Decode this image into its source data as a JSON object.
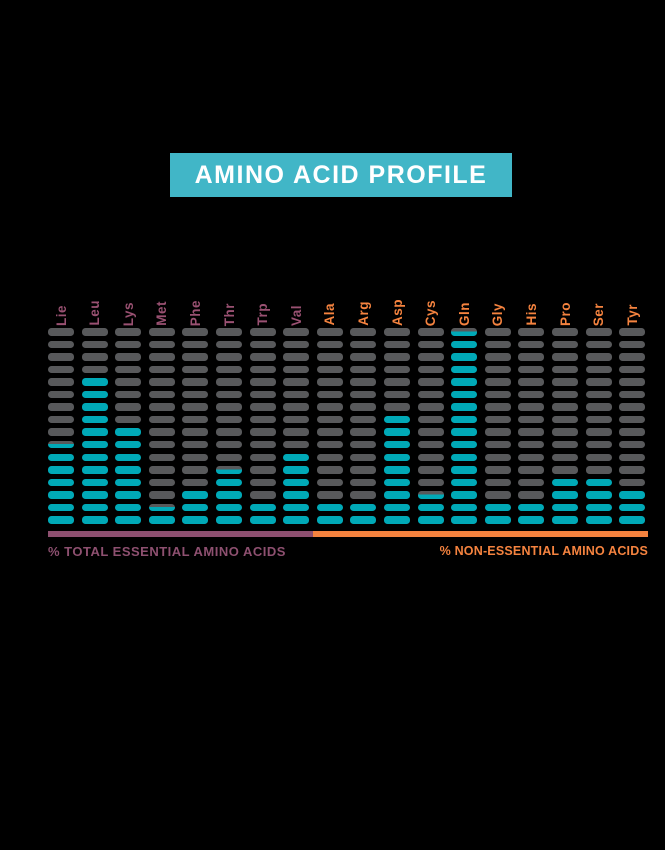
{
  "title": "AMINO ACID PROFILE",
  "colors": {
    "background": "#000000",
    "title_box": "#41B6C7",
    "title_text": "#FFFFFF",
    "dash_gray": "#58595B",
    "dash_teal": "#00A9B7",
    "essential_purple": "#8E5070",
    "essential_label_purple": "#9A5172",
    "non_essential_orange": "#F5833F"
  },
  "legend": {
    "essential": {
      "label": "% TOTAL ESSENTIAL AMINO ACIDS",
      "color": "#8E5070"
    },
    "non_essential": {
      "label": "% NON-ESSENTIAL AMINO ACIDS",
      "color": "#F5833F"
    }
  },
  "chart_data": {
    "type": "bar",
    "subtype": "dash-stack-infographic",
    "title": "AMINO ACID PROFILE",
    "rows_per_column": 16,
    "value_unit": "teal dashes filled from bottom (0.5 = partially filled dash)",
    "legend_position": "bottom",
    "grid": false,
    "categories": [
      "Lie",
      "Leu",
      "Lys",
      "Met",
      "Phe",
      "Thr",
      "Trp",
      "Val",
      "Ala",
      "Arg",
      "Asp",
      "Cys",
      "Gln",
      "Gly",
      "His",
      "Pro",
      "Ser",
      "Tyr"
    ],
    "series": [
      {
        "name": "teal dashes (relative amount)",
        "values": [
          6.5,
          12,
          8,
          1.5,
          3,
          4.5,
          2,
          6,
          2,
          2,
          9,
          2.5,
          15.5,
          2,
          2,
          4,
          4,
          3
        ]
      }
    ],
    "groups": [
      "essential",
      "essential",
      "essential",
      "essential",
      "essential",
      "essential",
      "essential",
      "essential",
      "non_essential",
      "non_essential",
      "non_essential",
      "non_essential",
      "non_essential",
      "non_essential",
      "non_essential",
      "non_essential",
      "non_essential",
      "non_essential"
    ]
  }
}
